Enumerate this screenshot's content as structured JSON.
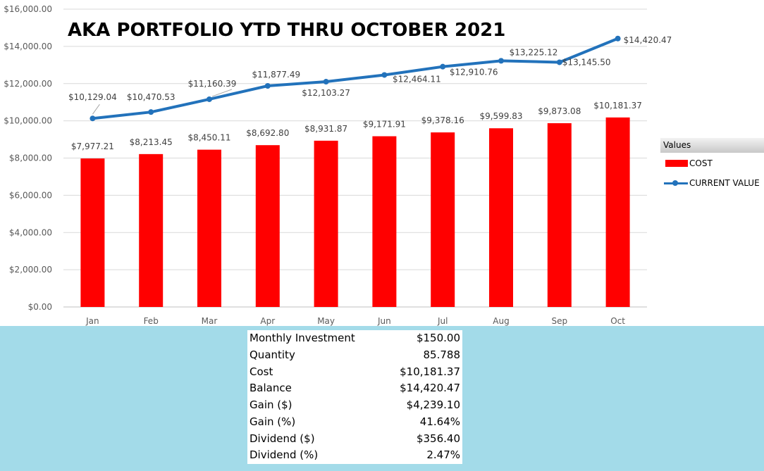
{
  "chart_data": {
    "type": "bar+line",
    "title": "AKA PORTFOLIO YTD THRU OCTOBER 2021",
    "categories": [
      "Jan",
      "Feb",
      "Mar",
      "Apr",
      "May",
      "Jun",
      "Jul",
      "Aug",
      "Sep",
      "Oct"
    ],
    "y_ticks": [
      "$0.00",
      "$2,000.00",
      "$4,000.00",
      "$6,000.00",
      "$8,000.00",
      "$10,000.00",
      "$12,000.00",
      "$14,000.00",
      "$16,000.00"
    ],
    "ylim": [
      0,
      16000
    ],
    "grid": true,
    "legend_position": "right",
    "series": [
      {
        "name": "COST",
        "type": "bar",
        "color": "#ff0000",
        "values": [
          7977.21,
          8213.45,
          8450.11,
          8692.8,
          8931.87,
          9171.91,
          9378.16,
          9599.83,
          9873.08,
          10181.37
        ],
        "labels": [
          "$7,977.21",
          "$8,213.45",
          "$8,450.11",
          "$8,692.80",
          "$8,931.87",
          "$9,171.91",
          "$9,378.16",
          "$9,599.83",
          "$9,873.08",
          "$10,181.37"
        ]
      },
      {
        "name": "CURRENT VALUE",
        "type": "line",
        "color": "#2272bb",
        "values": [
          10129.04,
          10470.53,
          11160.39,
          11877.49,
          12103.27,
          12464.11,
          12910.76,
          13225.12,
          13145.5,
          14420.47
        ],
        "labels": [
          "$10,129.04",
          "$10,470.53",
          "$11,160.39",
          "$11,877.49",
          "$12,103.27",
          "$12,464.11",
          "$12,910.76",
          "$13,225.12",
          "$13,145.50",
          "$14,420.47"
        ]
      }
    ]
  },
  "legend": {
    "header": "Values",
    "items": [
      "COST",
      "CURRENT VALUE"
    ]
  },
  "summary": {
    "rows": [
      {
        "label": "Monthly Investment",
        "value": "$150.00"
      },
      {
        "label": "Quantity",
        "value": "85.788"
      },
      {
        "label": "Cost",
        "value": "$10,181.37"
      },
      {
        "label": "Balance",
        "value": "$14,420.47"
      },
      {
        "label": "Gain ($)",
        "value": "$4,239.10"
      },
      {
        "label": "Gain (%)",
        "value": "41.64%"
      },
      {
        "label": "Dividend ($)",
        "value": "$356.40"
      },
      {
        "label": "Dividend (%)",
        "value": "2.47%"
      }
    ]
  }
}
